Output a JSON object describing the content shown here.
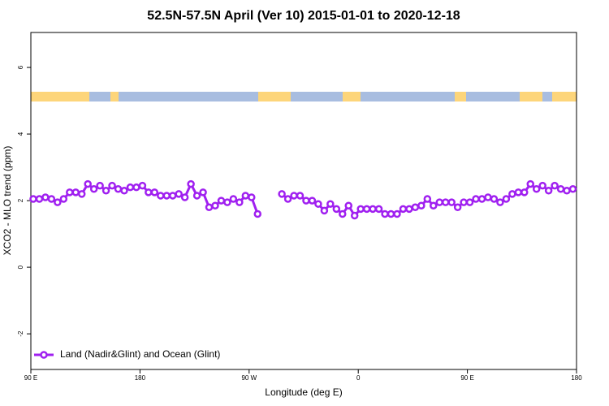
{
  "chart_data": {
    "type": "line",
    "title": "52.5N-57.5N April (Ver 10)   2015-01-01 to 2020-12-18",
    "x_label": "Longitude (deg E)",
    "y_label": "XCO2 - MLO trend (ppm)",
    "x": [
      92,
      97,
      102,
      107,
      112,
      117,
      122,
      127,
      132,
      137,
      142,
      147,
      152,
      157,
      162,
      167,
      172,
      177,
      182,
      187,
      192,
      197,
      202,
      207,
      212,
      217,
      222,
      227,
      232,
      237,
      242,
      247,
      252,
      257,
      262,
      267,
      272,
      277,
      282,
      287,
      292,
      297,
      302,
      307,
      312,
      317,
      322,
      327,
      332,
      337,
      342,
      347,
      352,
      357,
      362,
      367,
      372,
      377,
      382,
      387,
      392,
      397,
      402,
      407,
      412,
      417,
      422,
      427,
      432,
      437,
      442,
      447,
      452,
      457,
      462,
      467,
      472,
      477,
      482,
      487,
      492,
      497,
      502,
      507,
      512,
      517,
      522,
      527,
      532,
      537
    ],
    "series": [
      {
        "name": "Land (Nadir&Glint) and Ocean (Glint)",
        "color": "#a020f0",
        "values": [
          2.05,
          2.05,
          2.1,
          2.05,
          1.95,
          2.05,
          2.25,
          2.25,
          2.2,
          2.5,
          2.35,
          2.45,
          2.3,
          2.45,
          2.35,
          2.3,
          2.4,
          2.4,
          2.45,
          2.25,
          2.25,
          2.15,
          2.15,
          2.15,
          2.2,
          2.1,
          2.5,
          2.15,
          2.25,
          1.8,
          1.85,
          2.0,
          1.95,
          2.05,
          1.95,
          2.15,
          2.1,
          1.6,
          null,
          null,
          null,
          2.2,
          2.05,
          2.15,
          2.15,
          2.0,
          2.0,
          1.9,
          1.7,
          1.9,
          1.75,
          1.6,
          1.85,
          1.55,
          1.75,
          1.75,
          1.75,
          1.75,
          1.6,
          1.6,
          1.6,
          1.75,
          1.75,
          1.8,
          1.85,
          2.05,
          1.85,
          1.95,
          1.95,
          1.95,
          1.8,
          1.95,
          1.95,
          2.05,
          2.05,
          2.1,
          2.05,
          1.95,
          2.05,
          2.2,
          2.25,
          2.25,
          2.5,
          2.35,
          2.45,
          2.3,
          2.45,
          2.35,
          2.3,
          2.35
        ]
      }
    ],
    "xlim": [
      90,
      540
    ],
    "xticks": [
      {
        "value": 90,
        "label": "90 E"
      },
      180,
      {
        "value": 270,
        "label": "90 W"
      },
      {
        "value": 360,
        "label": "0"
      },
      {
        "value": 450,
        "label": "90 E"
      },
      {
        "value": 540,
        "label": "180"
      }
    ],
    "ylim": [
      -3.07,
      7.05
    ],
    "yticks": [
      -2,
      0,
      2,
      4,
      6
    ],
    "legend": "bottomleft"
  }
}
